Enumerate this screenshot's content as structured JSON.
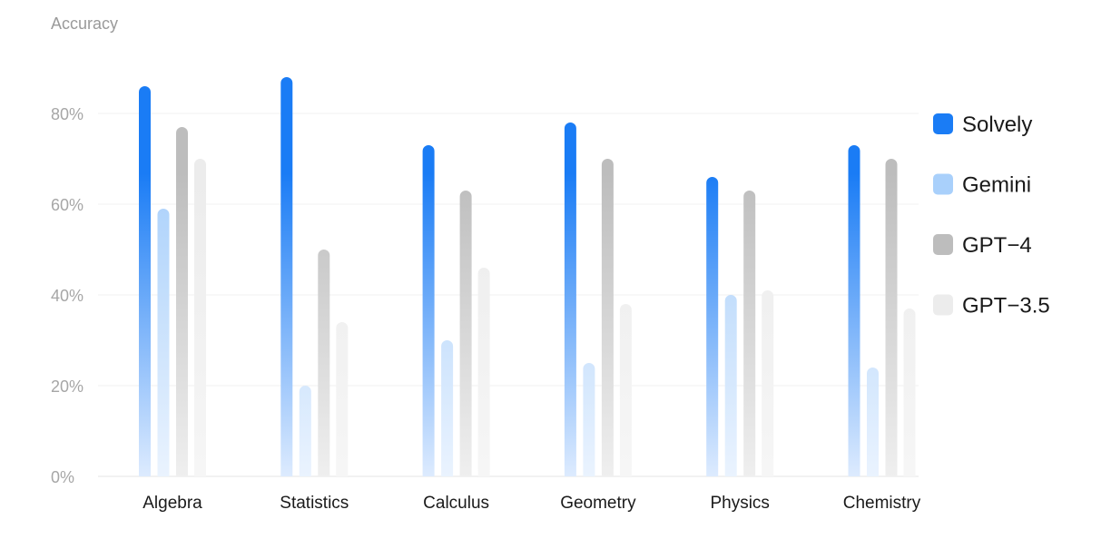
{
  "chart_data": {
    "type": "bar",
    "title": "",
    "xlabel": "",
    "ylabel": "Accuracy",
    "ylim": [
      0,
      100
    ],
    "yticks": [
      "0%",
      "20%",
      "40%",
      "60%",
      "80%"
    ],
    "ytick_values": [
      0,
      20,
      40,
      60,
      80
    ],
    "grid": true,
    "legend_position": "right",
    "categories": [
      "Algebra",
      "Statistics",
      "Calculus",
      "Geometry",
      "Physics",
      "Chemistry"
    ],
    "series": [
      {
        "name": "Solvely",
        "color": "#1a7cf5",
        "values": [
          86,
          88,
          73,
          78,
          66,
          73
        ]
      },
      {
        "name": "Gemini",
        "color": "#a9d0fb",
        "values": [
          59,
          20,
          30,
          25,
          40,
          24
        ]
      },
      {
        "name": "GPT−4",
        "color": "#bdbdbd",
        "values": [
          77,
          50,
          63,
          70,
          63,
          70
        ]
      },
      {
        "name": "GPT−3.5",
        "color": "#ececec",
        "values": [
          70,
          34,
          46,
          38,
          41,
          37
        ]
      }
    ]
  }
}
